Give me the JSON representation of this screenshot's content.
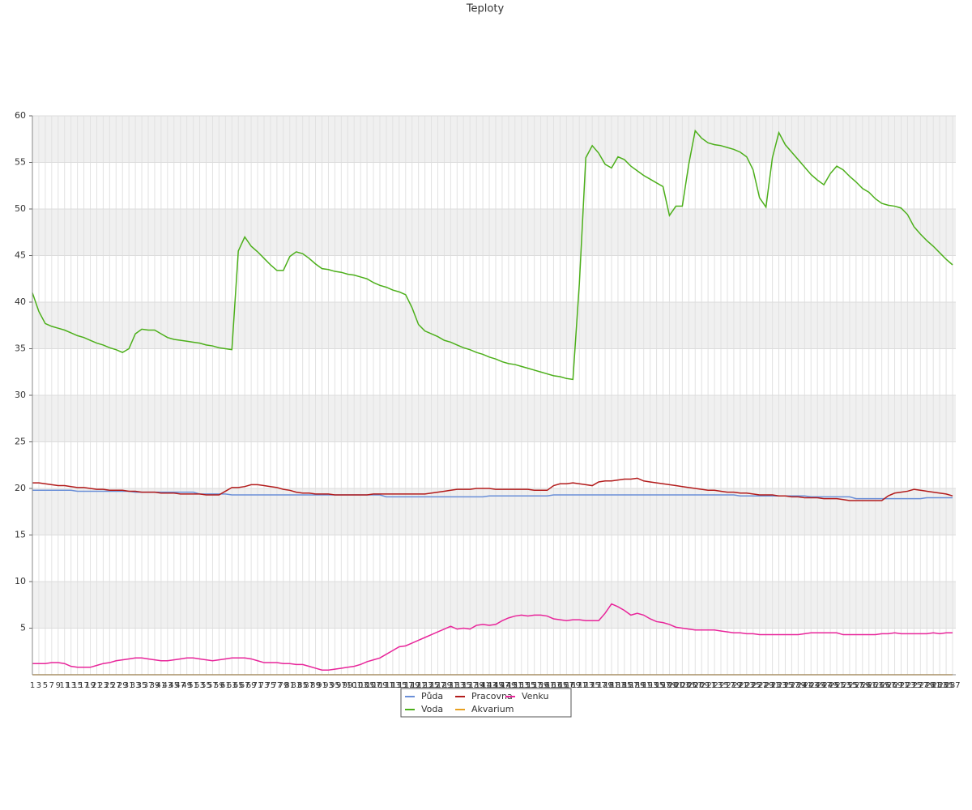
{
  "chart_data": {
    "type": "line",
    "title": "Teploty",
    "x": [
      1,
      3,
      5,
      7,
      9,
      11,
      13,
      15,
      17,
      19,
      21,
      23,
      25,
      27,
      29,
      31,
      33,
      35,
      37,
      39,
      41,
      43,
      45,
      47,
      49,
      51,
      53,
      55,
      57,
      59,
      61,
      63,
      65,
      67,
      69,
      71,
      73,
      75,
      77,
      79,
      81,
      83,
      85,
      87,
      89,
      91,
      93,
      95,
      97,
      99,
      101,
      103,
      105,
      107,
      109,
      111,
      113,
      115,
      117,
      119,
      121,
      123,
      125,
      127,
      129,
      131,
      133,
      135,
      137,
      139,
      141,
      143,
      145,
      147,
      149,
      151,
      153,
      155,
      157,
      159,
      161,
      163,
      165,
      167,
      169,
      171,
      173,
      175,
      177,
      179,
      181,
      183,
      185,
      187,
      189,
      191,
      193,
      195,
      197,
      199,
      201,
      203,
      205,
      207,
      209,
      211,
      213,
      215,
      217,
      219,
      221,
      223,
      225,
      227,
      229,
      231,
      233,
      235,
      237,
      239,
      241,
      243,
      245,
      247,
      249,
      251,
      253,
      255,
      257,
      259,
      261,
      263,
      265,
      267,
      269,
      271,
      273,
      275,
      277,
      279,
      281,
      283,
      285,
      287
    ],
    "xlim": [
      1,
      288
    ],
    "ylim": [
      0,
      60
    ],
    "yticks": [
      5,
      10,
      15,
      20,
      25,
      30,
      35,
      40,
      45,
      50,
      55,
      60
    ],
    "grid": true,
    "series": [
      {
        "name": "Půda",
        "color": "#6a8fd8",
        "values": [
          19.8,
          19.8,
          19.8,
          19.8,
          19.8,
          19.8,
          19.8,
          19.7,
          19.7,
          19.7,
          19.7,
          19.7,
          19.7,
          19.7,
          19.7,
          19.7,
          19.6,
          19.6,
          19.6,
          19.6,
          19.6,
          19.6,
          19.6,
          19.6,
          19.6,
          19.6,
          19.4,
          19.4,
          19.4,
          19.4,
          19.4,
          19.3,
          19.3,
          19.3,
          19.3,
          19.3,
          19.3,
          19.3,
          19.3,
          19.3,
          19.3,
          19.3,
          19.3,
          19.3,
          19.3,
          19.3,
          19.3,
          19.3,
          19.3,
          19.3,
          19.3,
          19.3,
          19.3,
          19.3,
          19.3,
          19.1,
          19.1,
          19.1,
          19.1,
          19.1,
          19.1,
          19.1,
          19.1,
          19.1,
          19.1,
          19.1,
          19.1,
          19.1,
          19.1,
          19.1,
          19.1,
          19.2,
          19.2,
          19.2,
          19.2,
          19.2,
          19.2,
          19.2,
          19.2,
          19.2,
          19.2,
          19.3,
          19.3,
          19.3,
          19.3,
          19.3,
          19.3,
          19.3,
          19.3,
          19.3,
          19.3,
          19.3,
          19.3,
          19.3,
          19.3,
          19.3,
          19.3,
          19.3,
          19.3,
          19.3,
          19.3,
          19.3,
          19.3,
          19.3,
          19.3,
          19.3,
          19.3,
          19.3,
          19.3,
          19.3,
          19.2,
          19.2,
          19.2,
          19.2,
          19.2,
          19.2,
          19.2,
          19.2,
          19.2,
          19.2,
          19.2,
          19.1,
          19.1,
          19.1,
          19.1,
          19.1,
          19.1,
          19.1,
          18.9,
          18.9,
          18.9,
          18.9,
          18.9,
          18.9,
          18.9,
          18.9,
          18.9,
          18.9,
          18.9,
          19.0,
          19.0,
          19.0,
          19.0,
          19.0
        ]
      },
      {
        "name": "Voda",
        "color": "#4caf1a",
        "values": [
          41,
          39,
          37.7,
          37.4,
          37.2,
          37.0,
          36.7,
          36.4,
          36.2,
          35.9,
          35.6,
          35.4,
          35.1,
          34.9,
          34.6,
          35.0,
          36.6,
          37.1,
          37.0,
          37.0,
          36.6,
          36.2,
          36.0,
          35.9,
          35.8,
          35.7,
          35.6,
          35.4,
          35.3,
          35.1,
          35.0,
          34.9,
          45.5,
          47.0,
          46.0,
          45.4,
          44.7,
          44.0,
          43.4,
          43.4,
          44.9,
          45.4,
          45.2,
          44.7,
          44.1,
          43.6,
          43.5,
          43.3,
          43.2,
          43.0,
          42.9,
          42.7,
          42.5,
          42.1,
          41.8,
          41.6,
          41.3,
          41.1,
          40.8,
          39.4,
          37.6,
          36.9,
          36.6,
          36.3,
          35.9,
          35.7,
          35.4,
          35.1,
          34.9,
          34.6,
          34.4,
          34.1,
          33.9,
          33.6,
          33.4,
          33.3,
          33.1,
          32.9,
          32.7,
          32.5,
          32.3,
          32.1,
          32.0,
          31.8,
          31.7,
          42,
          55.5,
          56.8,
          56.0,
          54.8,
          54.4,
          55.6,
          55.3,
          54.6,
          54.1,
          53.6,
          53.2,
          52.8,
          52.4,
          49.3,
          50.3,
          50.3,
          54.8,
          58.4,
          57.6,
          57.1,
          56.9,
          56.8,
          56.6,
          56.4,
          56.1,
          55.6,
          54.2,
          51.2,
          50.2,
          55.5,
          58.2,
          56.9,
          56.1,
          55.3,
          54.5,
          53.7,
          53.1,
          52.6,
          53.8,
          54.6,
          54.2,
          53.5,
          52.9,
          52.2,
          51.8,
          51.1,
          50.6,
          50.4,
          50.3,
          50.1,
          49.4,
          48.1,
          47.3,
          46.6,
          46.0,
          45.3,
          44.6,
          44.0
        ]
      },
      {
        "name": "Pracovna",
        "color": "#b31b1b",
        "values": [
          20.6,
          20.6,
          20.5,
          20.4,
          20.3,
          20.3,
          20.2,
          20.1,
          20.1,
          20.0,
          19.9,
          19.9,
          19.8,
          19.8,
          19.8,
          19.7,
          19.7,
          19.6,
          19.6,
          19.6,
          19.5,
          19.5,
          19.5,
          19.4,
          19.4,
          19.4,
          19.4,
          19.3,
          19.3,
          19.3,
          19.7,
          20.1,
          20.1,
          20.2,
          20.4,
          20.4,
          20.3,
          20.2,
          20.1,
          19.9,
          19.8,
          19.6,
          19.5,
          19.5,
          19.4,
          19.4,
          19.4,
          19.3,
          19.3,
          19.3,
          19.3,
          19.3,
          19.3,
          19.4,
          19.4,
          19.4,
          19.4,
          19.4,
          19.4,
          19.4,
          19.4,
          19.4,
          19.5,
          19.6,
          19.7,
          19.8,
          19.9,
          19.9,
          19.9,
          20.0,
          20.0,
          20.0,
          19.9,
          19.9,
          19.9,
          19.9,
          19.9,
          19.9,
          19.8,
          19.8,
          19.8,
          20.3,
          20.5,
          20.5,
          20.6,
          20.5,
          20.4,
          20.3,
          20.7,
          20.8,
          20.8,
          20.9,
          21.0,
          21.0,
          21.1,
          20.8,
          20.7,
          20.6,
          20.5,
          20.4,
          20.3,
          20.2,
          20.1,
          20.0,
          19.9,
          19.8,
          19.8,
          19.7,
          19.6,
          19.6,
          19.5,
          19.5,
          19.4,
          19.3,
          19.3,
          19.3,
          19.2,
          19.2,
          19.1,
          19.1,
          19.0,
          19.0,
          19.0,
          18.9,
          18.9,
          18.9,
          18.8,
          18.7,
          18.7,
          18.7,
          18.7,
          18.7,
          18.7,
          19.2,
          19.5,
          19.6,
          19.7,
          19.9,
          19.8,
          19.7,
          19.6,
          19.5,
          19.4,
          19.2
        ]
      },
      {
        "name": "Akvarium",
        "color": "#e8a020",
        "values": [
          0,
          0,
          0,
          0,
          0,
          0,
          0,
          0,
          0,
          0,
          0,
          0,
          0,
          0,
          0,
          0,
          0,
          0,
          0,
          0,
          0,
          0,
          0,
          0,
          0,
          0,
          0,
          0,
          0,
          0,
          0,
          0,
          0,
          0,
          0,
          0,
          0,
          0,
          0,
          0,
          0,
          0,
          0,
          0,
          0,
          0,
          0,
          0,
          0,
          0,
          0,
          0,
          0,
          0,
          0,
          0,
          0,
          0,
          0,
          0,
          0,
          0,
          0,
          0,
          0,
          0,
          0,
          0,
          0,
          0,
          0,
          0,
          0,
          0,
          0,
          0,
          0,
          0,
          0,
          0,
          0,
          0,
          0,
          0,
          0,
          0,
          0,
          0,
          0,
          0,
          0,
          0,
          0,
          0,
          0,
          0,
          0,
          0,
          0,
          0,
          0,
          0,
          0,
          0,
          0,
          0,
          0,
          0,
          0,
          0,
          0,
          0,
          0,
          0,
          0,
          0,
          0,
          0,
          0,
          0,
          0,
          0,
          0,
          0,
          0,
          0,
          0,
          0,
          0,
          0,
          0,
          0,
          0,
          0,
          0,
          0,
          0,
          0,
          0,
          0,
          0,
          0,
          0,
          0
        ]
      },
      {
        "name": "Venku",
        "color": "#e8259a",
        "values": [
          1.2,
          1.2,
          1.2,
          1.3,
          1.3,
          1.2,
          0.9,
          0.8,
          0.8,
          0.8,
          1.0,
          1.2,
          1.3,
          1.5,
          1.6,
          1.7,
          1.8,
          1.8,
          1.7,
          1.6,
          1.5,
          1.5,
          1.6,
          1.7,
          1.8,
          1.8,
          1.7,
          1.6,
          1.5,
          1.6,
          1.7,
          1.8,
          1.8,
          1.8,
          1.7,
          1.5,
          1.3,
          1.3,
          1.3,
          1.2,
          1.2,
          1.1,
          1.1,
          0.9,
          0.7,
          0.5,
          0.5,
          0.6,
          0.7,
          0.8,
          0.9,
          1.1,
          1.4,
          1.6,
          1.8,
          2.2,
          2.6,
          3.0,
          3.1,
          3.4,
          3.7,
          4.0,
          4.3,
          4.6,
          4.9,
          5.2,
          4.9,
          5.0,
          4.9,
          5.3,
          5.4,
          5.3,
          5.4,
          5.8,
          6.1,
          6.3,
          6.4,
          6.3,
          6.4,
          6.4,
          6.3,
          6.0,
          5.9,
          5.8,
          5.9,
          5.9,
          5.8,
          5.8,
          5.8,
          6.6,
          7.6,
          7.3,
          6.9,
          6.4,
          6.6,
          6.4,
          6.0,
          5.7,
          5.6,
          5.4,
          5.1,
          5.0,
          4.9,
          4.8,
          4.8,
          4.8,
          4.8,
          4.7,
          4.6,
          4.5,
          4.5,
          4.4,
          4.4,
          4.3,
          4.3,
          4.3,
          4.3,
          4.3,
          4.3,
          4.3,
          4.4,
          4.5,
          4.5,
          4.5,
          4.5,
          4.5,
          4.3,
          4.3,
          4.3,
          4.3,
          4.3,
          4.3,
          4.4,
          4.4,
          4.5,
          4.4,
          4.4,
          4.4,
          4.4,
          4.4,
          4.5,
          4.4,
          4.5,
          4.5
        ]
      }
    ]
  }
}
